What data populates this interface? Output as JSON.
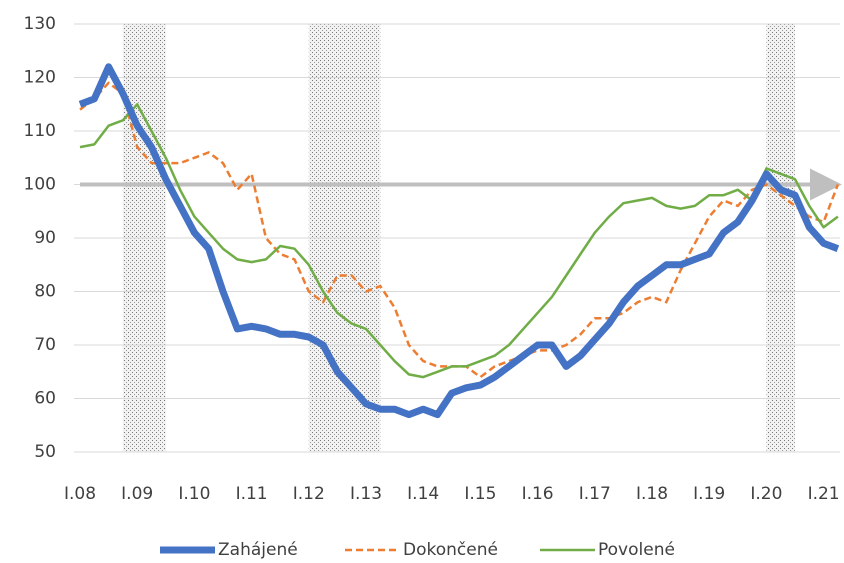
{
  "chart_data": {
    "type": "line",
    "categories": [
      "I.08",
      null,
      null,
      null,
      "I.09",
      null,
      null,
      null,
      "I.10",
      null,
      null,
      null,
      "I.11",
      null,
      null,
      null,
      "I.12",
      null,
      null,
      null,
      "I.13",
      null,
      null,
      null,
      "I.14",
      null,
      null,
      null,
      "I.15",
      null,
      null,
      null,
      "I.16",
      null,
      null,
      null,
      "I.17",
      null,
      null,
      null,
      "I.18",
      null,
      null,
      null,
      "I.19",
      null,
      null,
      null,
      "I.20",
      null,
      null,
      null,
      "I.21",
      null
    ],
    "series": [
      {
        "name": "Zahájené",
        "color": "#4472c4",
        "values": [
          115,
          116,
          122,
          117,
          111,
          107,
          101,
          96,
          91,
          88,
          80,
          73,
          73.5,
          73,
          72,
          72,
          71.5,
          70,
          65,
          62,
          59,
          58,
          58,
          57,
          58,
          57,
          61,
          62,
          62.5,
          64,
          66,
          68,
          70,
          70,
          66,
          68,
          71,
          74,
          78,
          81,
          83,
          85,
          85,
          86,
          87,
          91,
          93,
          97,
          102,
          99,
          98,
          92,
          89,
          88
        ]
      },
      {
        "name": "Dokončené",
        "color": "#ed7d31",
        "values": [
          114,
          116,
          119,
          117,
          107,
          104,
          104,
          104,
          105,
          106,
          104,
          99,
          102,
          90,
          87,
          86,
          80,
          78,
          83,
          83,
          80,
          81,
          77,
          70,
          67,
          66,
          66,
          66,
          64,
          66,
          67,
          68,
          69,
          69,
          70,
          72,
          75,
          75,
          76,
          78,
          79,
          78,
          84,
          89,
          94,
          97,
          96,
          99,
          100,
          98,
          96,
          94,
          93,
          100
        ]
      },
      {
        "name": "Povolené",
        "color": "#70ad47",
        "values": [
          107,
          107.5,
          111,
          112,
          115,
          110,
          105,
          99,
          94,
          91,
          88,
          86,
          85.5,
          86,
          88.5,
          88,
          85,
          80,
          76,
          74,
          73,
          70,
          67,
          64.5,
          64,
          65,
          66,
          66,
          67,
          68,
          70,
          73,
          76,
          79,
          83,
          87,
          91,
          94,
          96.5,
          97,
          97.5,
          96,
          95.5,
          96,
          98,
          98,
          99,
          97,
          103,
          102,
          101,
          96,
          92,
          94
        ]
      }
    ],
    "ylim": [
      50,
      130
    ],
    "yticks": [
      50,
      60,
      70,
      80,
      90,
      100,
      110,
      120,
      130
    ],
    "grid": true,
    "reference_line": 100,
    "shaded_periods": [
      [
        3,
        6
      ],
      [
        16,
        21
      ],
      [
        48,
        50
      ]
    ],
    "legend": "bottom"
  }
}
